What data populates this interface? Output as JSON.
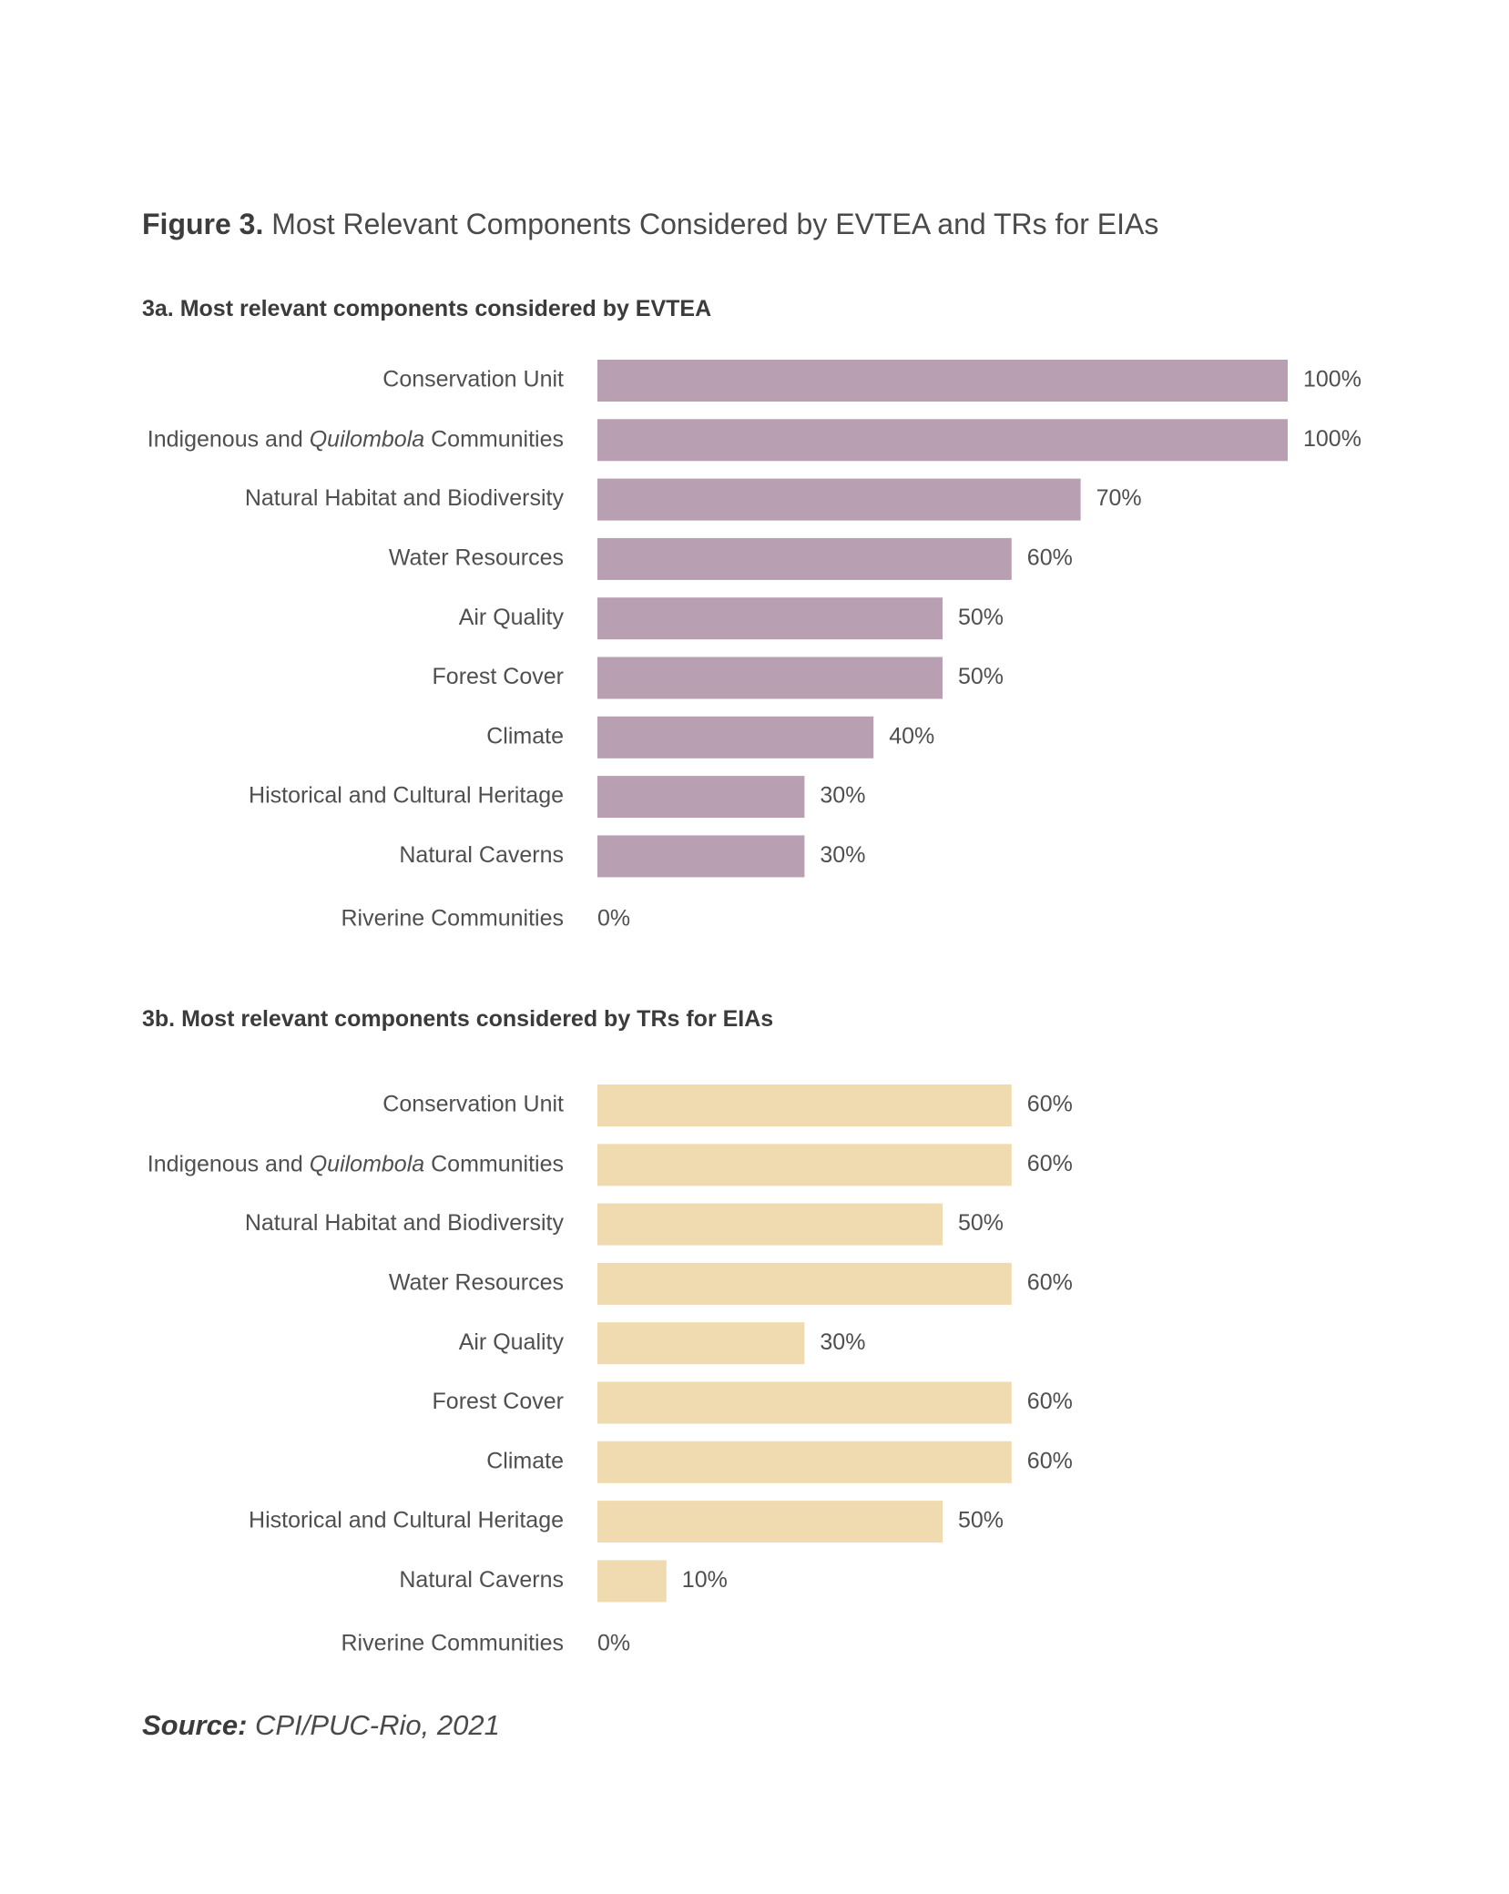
{
  "figure": {
    "number": "Figure 3.",
    "title": "Most Relevant Components Considered by EVTEA and TRs for EIAs"
  },
  "source": {
    "label": "Source:",
    "text": "CPI/PUC-Rio, 2021"
  },
  "chart_data": [
    {
      "type": "bar",
      "orientation": "horizontal",
      "title": "3a. Most relevant components considered by EVTEA",
      "categories": [
        "Conservation Unit",
        "Indigenous and Quilombola Communities",
        "Natural Habitat and Biodiversity",
        "Water Resources",
        "Air Quality",
        "Forest Cover",
        "Climate",
        "Historical and Cultural Heritage",
        "Natural Caverns",
        "Riverine Communities"
      ],
      "values": [
        100,
        100,
        70,
        60,
        50,
        50,
        40,
        30,
        30,
        0
      ],
      "value_labels": [
        "100%",
        "100%",
        "70%",
        "60%",
        "50%",
        "50%",
        "40%",
        "30%",
        "30%",
        "0%"
      ],
      "xlim": [
        0,
        100
      ],
      "grid": false,
      "legend": "none",
      "color": "#b8a0b2"
    },
    {
      "type": "bar",
      "orientation": "horizontal",
      "title": "3b. Most relevant components considered by TRs for EIAs",
      "categories": [
        "Conservation Unit",
        "Indigenous and Quilombola Communities",
        "Natural Habitat and Biodiversity",
        "Water Resources",
        "Air Quality",
        "Forest Cover",
        "Climate",
        "Historical and Cultural Heritage",
        "Natural Caverns",
        "Riverine Communities"
      ],
      "values": [
        60,
        60,
        50,
        60,
        30,
        60,
        60,
        50,
        10,
        0
      ],
      "value_labels": [
        "60%",
        "60%",
        "50%",
        "60%",
        "30%",
        "60%",
        "60%",
        "50%",
        "10%",
        "0%"
      ],
      "xlim": [
        0,
        100
      ],
      "grid": false,
      "legend": "none",
      "color": "#f0dbb0"
    }
  ]
}
